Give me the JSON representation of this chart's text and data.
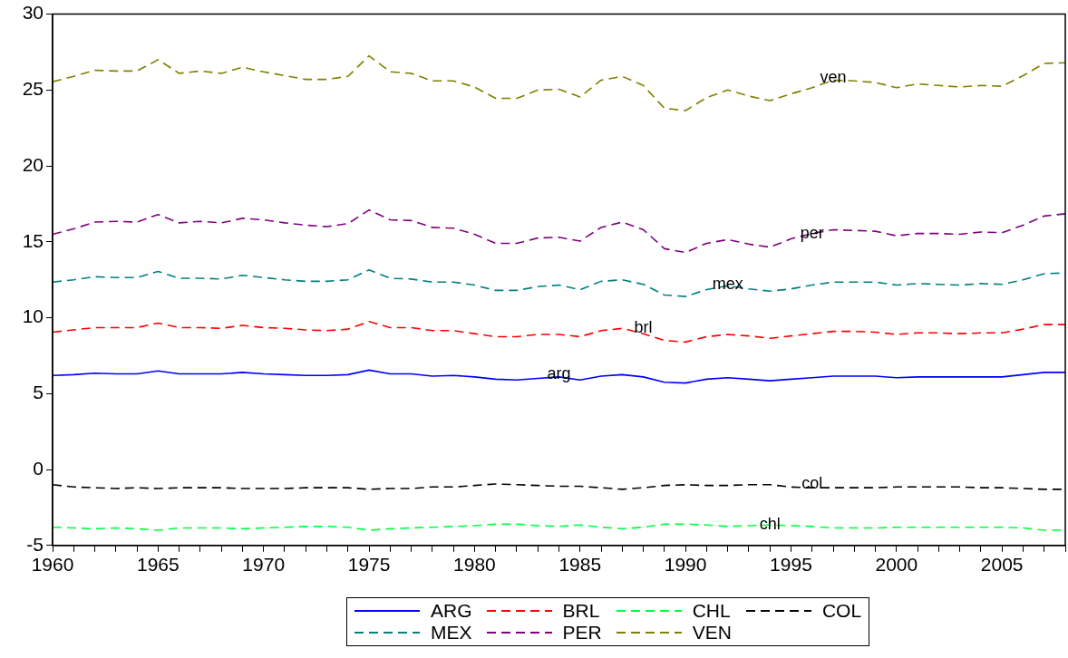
{
  "chart_data": {
    "type": "line",
    "x": [
      1960,
      1961,
      1962,
      1963,
      1964,
      1965,
      1966,
      1967,
      1968,
      1969,
      1970,
      1971,
      1972,
      1973,
      1974,
      1975,
      1976,
      1977,
      1978,
      1979,
      1980,
      1981,
      1982,
      1983,
      1984,
      1985,
      1986,
      1987,
      1988,
      1989,
      1990,
      1991,
      1992,
      1993,
      1994,
      1995,
      1996,
      1997,
      1998,
      1999,
      2000,
      2001,
      2002,
      2003,
      2004,
      2005,
      2006,
      2007,
      2008
    ],
    "series": [
      {
        "name": "ARG",
        "color": "#0000ff",
        "line_style": "solid",
        "values": [
          6.2,
          6.25,
          6.35,
          6.3,
          6.3,
          6.5,
          6.3,
          6.3,
          6.3,
          6.4,
          6.3,
          6.25,
          6.2,
          6.2,
          6.25,
          6.55,
          6.3,
          6.3,
          6.15,
          6.2,
          6.1,
          5.95,
          5.9,
          6.0,
          6.1,
          5.9,
          6.15,
          6.25,
          6.1,
          5.75,
          5.7,
          5.95,
          6.05,
          5.95,
          5.85,
          5.95,
          6.05,
          6.15,
          6.15,
          6.15,
          6.05,
          6.1,
          6.1,
          6.1,
          6.1,
          6.1,
          6.25,
          6.4,
          6.4
        ]
      },
      {
        "name": "BRL",
        "color": "#ff0000",
        "line_style": "dashed",
        "values": [
          9.05,
          9.2,
          9.35,
          9.35,
          9.35,
          9.65,
          9.35,
          9.35,
          9.3,
          9.5,
          9.35,
          9.3,
          9.2,
          9.15,
          9.25,
          9.75,
          9.35,
          9.35,
          9.15,
          9.15,
          8.95,
          8.75,
          8.75,
          8.9,
          8.9,
          8.75,
          9.15,
          9.3,
          8.95,
          8.5,
          8.4,
          8.75,
          8.9,
          8.8,
          8.65,
          8.8,
          8.95,
          9.1,
          9.1,
          9.05,
          8.9,
          9.0,
          9.0,
          8.95,
          9.0,
          9.0,
          9.25,
          9.55,
          9.55
        ]
      },
      {
        "name": "CHL",
        "color": "#00ff40",
        "line_style": "dashed",
        "values": [
          -3.8,
          -3.85,
          -3.9,
          -3.85,
          -3.9,
          -4.0,
          -3.85,
          -3.85,
          -3.85,
          -3.9,
          -3.85,
          -3.8,
          -3.75,
          -3.75,
          -3.8,
          -4.0,
          -3.9,
          -3.85,
          -3.8,
          -3.75,
          -3.7,
          -3.6,
          -3.6,
          -3.7,
          -3.75,
          -3.65,
          -3.8,
          -3.9,
          -3.8,
          -3.6,
          -3.6,
          -3.65,
          -3.75,
          -3.7,
          -3.65,
          -3.7,
          -3.75,
          -3.85,
          -3.85,
          -3.85,
          -3.8,
          -3.8,
          -3.8,
          -3.8,
          -3.8,
          -3.8,
          -3.85,
          -4.0,
          -4.0
        ]
      },
      {
        "name": "COL",
        "color": "#000000",
        "line_style": "dashed",
        "values": [
          -1.0,
          -1.15,
          -1.2,
          -1.25,
          -1.2,
          -1.25,
          -1.2,
          -1.2,
          -1.2,
          -1.25,
          -1.25,
          -1.25,
          -1.2,
          -1.2,
          -1.2,
          -1.3,
          -1.25,
          -1.25,
          -1.15,
          -1.15,
          -1.05,
          -0.95,
          -1.0,
          -1.05,
          -1.1,
          -1.1,
          -1.2,
          -1.3,
          -1.2,
          -1.05,
          -1.0,
          -1.05,
          -1.05,
          -1.0,
          -1.0,
          -1.15,
          -1.2,
          -1.2,
          -1.2,
          -1.2,
          -1.15,
          -1.15,
          -1.15,
          -1.15,
          -1.2,
          -1.2,
          -1.25,
          -1.3,
          -1.3
        ]
      },
      {
        "name": "MEX",
        "color": "#008080",
        "line_style": "dashed",
        "values": [
          12.35,
          12.5,
          12.7,
          12.65,
          12.65,
          13.05,
          12.6,
          12.6,
          12.55,
          12.8,
          12.65,
          12.5,
          12.4,
          12.4,
          12.5,
          13.15,
          12.6,
          12.55,
          12.35,
          12.35,
          12.15,
          11.8,
          11.8,
          12.05,
          12.15,
          11.85,
          12.4,
          12.5,
          12.2,
          11.5,
          11.4,
          11.85,
          12.1,
          11.9,
          11.75,
          11.9,
          12.15,
          12.35,
          12.35,
          12.35,
          12.15,
          12.25,
          12.2,
          12.15,
          12.25,
          12.2,
          12.5,
          12.9,
          12.95
        ]
      },
      {
        "name": "PER",
        "color": "#800080",
        "line_style": "dashed",
        "values": [
          15.5,
          15.85,
          16.3,
          16.35,
          16.3,
          16.8,
          16.25,
          16.35,
          16.25,
          16.55,
          16.45,
          16.25,
          16.1,
          16.0,
          16.2,
          17.1,
          16.45,
          16.4,
          15.95,
          15.9,
          15.5,
          14.9,
          14.9,
          15.25,
          15.3,
          15.05,
          15.95,
          16.3,
          15.8,
          14.55,
          14.3,
          14.9,
          15.15,
          14.85,
          14.65,
          15.2,
          15.55,
          15.8,
          15.75,
          15.7,
          15.4,
          15.55,
          15.55,
          15.5,
          15.65,
          15.6,
          16.1,
          16.7,
          16.85
        ]
      },
      {
        "name": "VEN",
        "color": "#808000",
        "line_style": "dashed",
        "values": [
          25.55,
          25.9,
          26.3,
          26.25,
          26.25,
          27.0,
          26.1,
          26.25,
          26.1,
          26.5,
          26.2,
          25.95,
          25.7,
          25.7,
          25.9,
          27.25,
          26.2,
          26.1,
          25.6,
          25.6,
          25.2,
          24.45,
          24.45,
          25.0,
          25.05,
          24.55,
          25.65,
          25.9,
          25.3,
          23.8,
          23.65,
          24.5,
          25.0,
          24.6,
          24.3,
          24.75,
          25.15,
          25.65,
          25.6,
          25.5,
          25.15,
          25.4,
          25.3,
          25.2,
          25.3,
          25.25,
          25.95,
          26.75,
          26.8
        ]
      }
    ],
    "xlim": [
      1960,
      2008
    ],
    "xticks": [
      1960,
      {
        "value": 1961,
        "label": null
      },
      {
        "value": 1962,
        "label": null
      },
      {
        "value": 1963,
        "label": null
      },
      {
        "value": 1964,
        "label": null
      },
      1965,
      {
        "value": 1966,
        "label": null
      },
      {
        "value": 1967,
        "label": null
      },
      {
        "value": 1968,
        "label": null
      },
      {
        "value": 1969,
        "label": null
      },
      1970,
      {
        "value": 1971,
        "label": null
      },
      {
        "value": 1972,
        "label": null
      },
      {
        "value": 1973,
        "label": null
      },
      {
        "value": 1974,
        "label": null
      },
      1975,
      {
        "value": 1976,
        "label": null
      },
      {
        "value": 1977,
        "label": null
      },
      {
        "value": 1978,
        "label": null
      },
      {
        "value": 1979,
        "label": null
      },
      1980,
      {
        "value": 1981,
        "label": null
      },
      {
        "value": 1982,
        "label": null
      },
      {
        "value": 1983,
        "label": null
      },
      {
        "value": 1984,
        "label": null
      },
      1985,
      {
        "value": 1986,
        "label": null
      },
      {
        "value": 1987,
        "label": null
      },
      {
        "value": 1988,
        "label": null
      },
      {
        "value": 1989,
        "label": null
      },
      1990,
      {
        "value": 1991,
        "label": null
      },
      {
        "value": 1992,
        "label": null
      },
      {
        "value": 1993,
        "label": null
      },
      {
        "value": 1994,
        "label": null
      },
      1995,
      {
        "value": 1996,
        "label": null
      },
      {
        "value": 1997,
        "label": null
      },
      {
        "value": 1998,
        "label": null
      },
      {
        "value": 1999,
        "label": null
      },
      2000,
      {
        "value": 2001,
        "label": null
      },
      {
        "value": 2002,
        "label": null
      },
      {
        "value": 2003,
        "label": null
      },
      {
        "value": 2004,
        "label": null
      },
      2005,
      {
        "value": 2006,
        "label": null
      },
      {
        "value": 2007,
        "label": null
      },
      {
        "value": 2008,
        "label": null
      }
    ],
    "ylim": [
      -5,
      30
    ],
    "yticks": [
      -5,
      0,
      5,
      10,
      15,
      20,
      25,
      30
    ],
    "grid": false,
    "legend": "bottom",
    "marker": "none",
    "annotations": [
      {
        "text": "arg",
        "x": 1984,
        "y": 6.3
      },
      {
        "text": "brl",
        "x": 1988,
        "y": 9.3
      },
      {
        "text": "mex",
        "x": 1992,
        "y": 12.2
      },
      {
        "text": "per",
        "x": 1996,
        "y": 15.55
      },
      {
        "text": "ven",
        "x": 1997,
        "y": 25.8
      },
      {
        "text": "col",
        "x": 1996,
        "y": -0.95
      },
      {
        "text": "chl",
        "x": 1994,
        "y": -3.65
      }
    ]
  }
}
